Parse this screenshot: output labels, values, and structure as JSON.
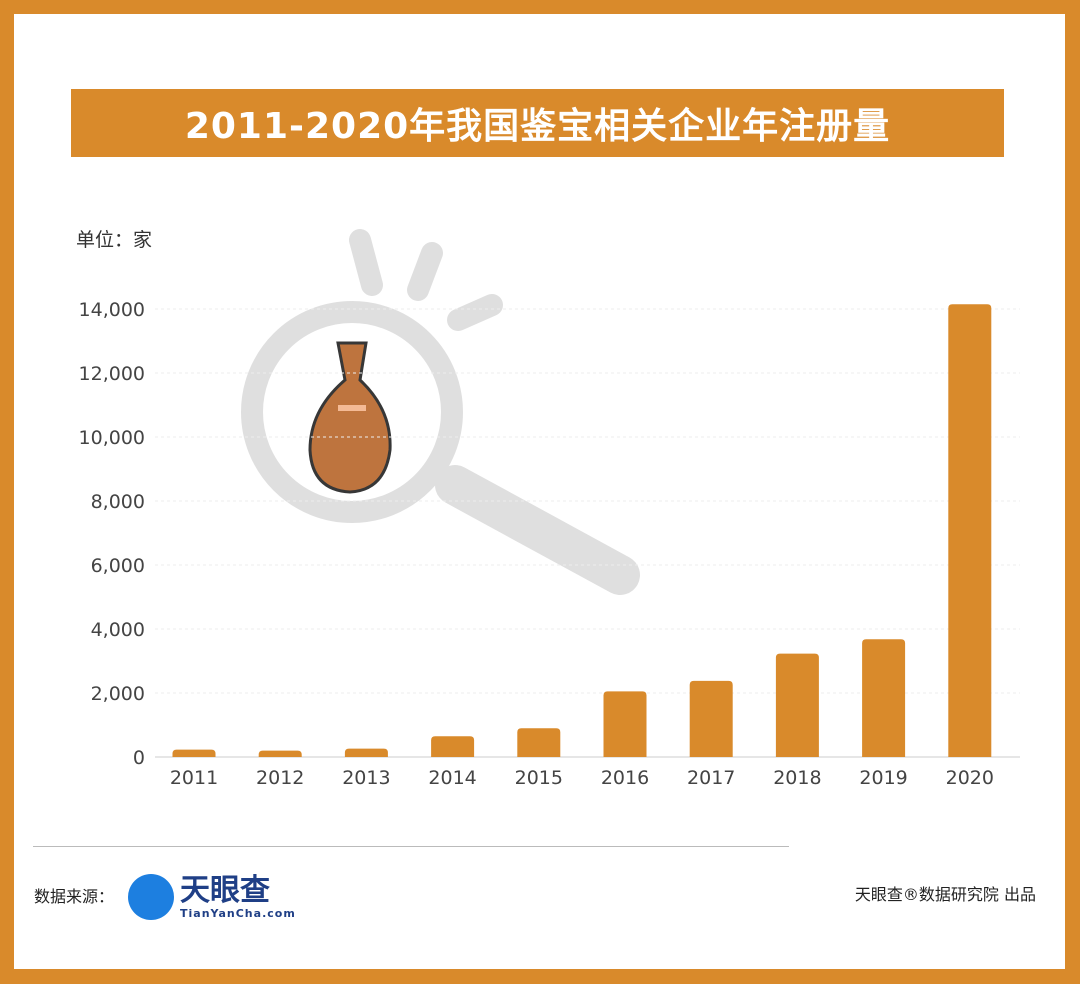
{
  "title": "2011-2020年我国鉴宝相关企业年注册量",
  "unit_label": "单位：家",
  "footer": {
    "source_label": "数据来源：",
    "logo_cn": "天眼查",
    "logo_en": "TianYanCha.com",
    "credit": "天眼查®数据研究院 出品"
  },
  "colors": {
    "bar": "#d98a2b",
    "border": "#d98a2b"
  },
  "chart_data": {
    "type": "bar",
    "title": "2011-2020年我国鉴宝相关企业年注册量",
    "ylabel": "单位：家",
    "xlabel": "",
    "categories": [
      "2011",
      "2012",
      "2013",
      "2014",
      "2015",
      "2016",
      "2017",
      "2018",
      "2019",
      "2020"
    ],
    "values": [
      230,
      200,
      260,
      650,
      900,
      2050,
      2380,
      3230,
      3680,
      14150
    ],
    "ylim": [
      0,
      14000
    ],
    "yticks": [
      0,
      2000,
      4000,
      6000,
      8000,
      10000,
      12000,
      14000
    ],
    "ytick_labels": [
      "0",
      "2,000",
      "4,000",
      "6,000",
      "8,000",
      "10,000",
      "12,000",
      "14,000"
    ],
    "grid": true
  }
}
